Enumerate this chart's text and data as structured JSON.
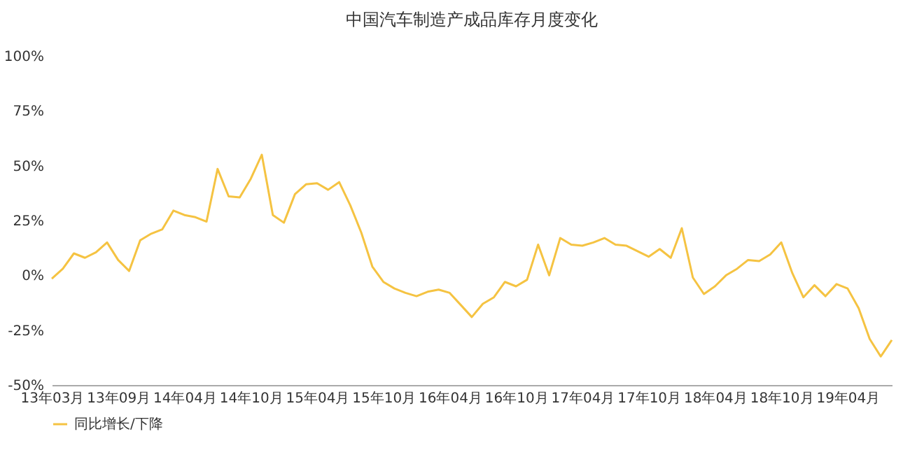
{
  "chart_data": {
    "type": "line",
    "title": "中国汽车制造产成品库存月度变化",
    "categories": [
      "13年03月",
      null,
      null,
      null,
      null,
      null,
      "13年09月",
      null,
      null,
      null,
      null,
      null,
      "14年04月",
      null,
      null,
      null,
      null,
      null,
      "14年10月",
      null,
      null,
      null,
      null,
      null,
      "15年04月",
      null,
      null,
      null,
      null,
      null,
      "15年10月",
      null,
      null,
      null,
      null,
      null,
      "16年04月",
      null,
      null,
      null,
      null,
      null,
      "16年10月",
      null,
      null,
      null,
      null,
      null,
      "17年04月",
      null,
      null,
      null,
      null,
      null,
      "17年10月",
      null,
      null,
      null,
      null,
      null,
      "18年04月",
      null,
      null,
      null,
      null,
      null,
      "18年10月",
      null,
      null,
      null,
      null,
      null,
      "19年04月",
      null,
      null,
      null,
      null
    ],
    "series": [
      {
        "name": "同比增长/下降",
        "color": "#f5c342",
        "values": [
          -1.5,
          3,
          10,
          8,
          10.5,
          15,
          7,
          2,
          16,
          19,
          21,
          29.5,
          27.5,
          26.5,
          24.5,
          48.5,
          36,
          35.5,
          44,
          55,
          27.5,
          24,
          37,
          41.5,
          42,
          39,
          42.5,
          32,
          19.5,
          4,
          -3,
          -6,
          -8,
          -9.5,
          -7.5,
          -6.5,
          -8,
          -13.5,
          -19,
          -13,
          -10,
          -3,
          -5,
          -2,
          14,
          0,
          17,
          14,
          13.5,
          15,
          17,
          14,
          13.5,
          11,
          8.5,
          12,
          8,
          21.5,
          -1,
          -8.5,
          -5,
          0,
          3,
          7,
          6.5,
          9.5,
          15,
          1,
          -10,
          -4.5,
          -9.5,
          -4,
          -6,
          -15,
          -29,
          -37,
          -29.5
        ]
      }
    ],
    "ylim": [
      -50,
      100
    ],
    "yticks": [
      {
        "value": -50,
        "label": "-50%"
      },
      {
        "value": -25,
        "label": "-25%"
      },
      {
        "value": 0,
        "label": "0%"
      },
      {
        "value": 25,
        "label": "25%"
      },
      {
        "value": 50,
        "label": "50%"
      },
      {
        "value": 75,
        "label": "75%"
      },
      {
        "value": 100,
        "label": "100%"
      }
    ],
    "grid": false,
    "legend": "bottom",
    "marker": "none",
    "line_style": "solid"
  }
}
